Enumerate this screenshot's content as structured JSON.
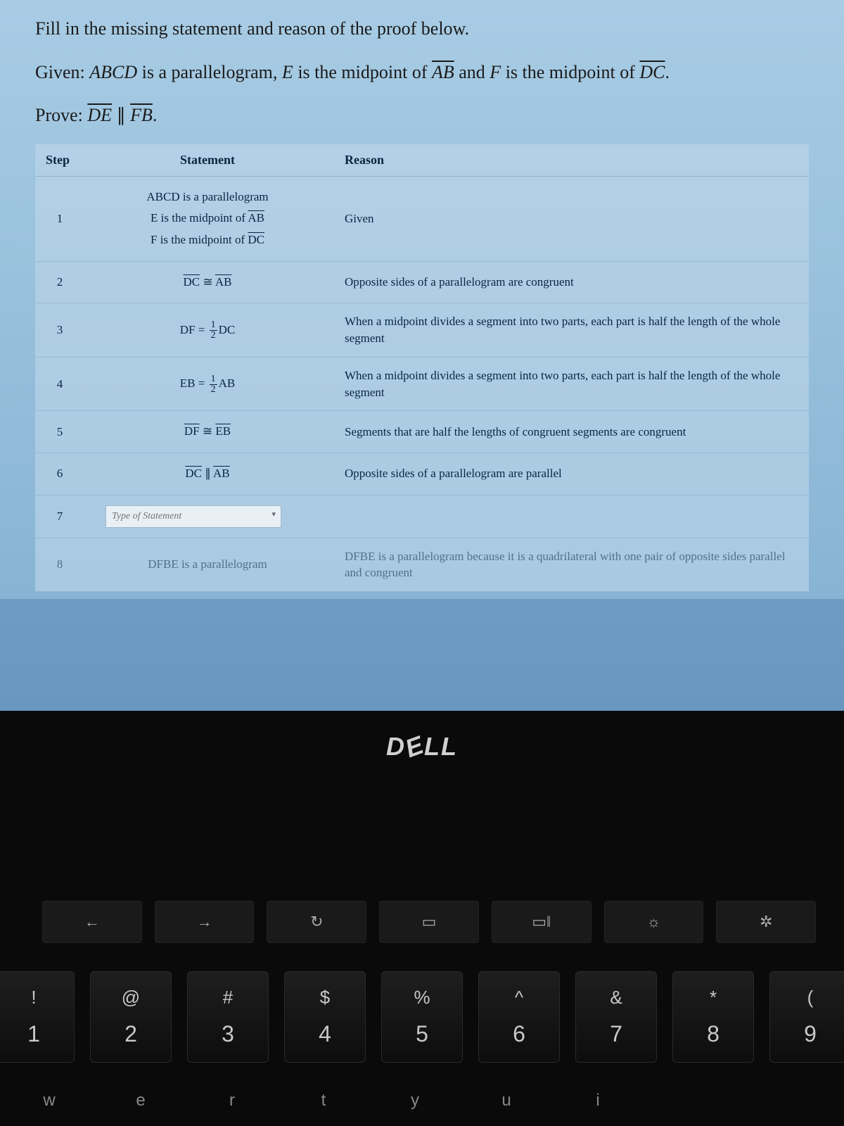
{
  "problem": {
    "instruction": "Fill in the missing statement and reason of the proof below.",
    "given_prefix": "Given: ",
    "given_html": "ABCD is a parallelogram, E is the midpoint of AB and F is the midpoint of DC.",
    "prove_prefix": "Prove: ",
    "prove_html": "DE ∥ FB."
  },
  "table": {
    "headers": {
      "step": "Step",
      "statement": "Statement",
      "reason": "Reason"
    },
    "rows": [
      {
        "step": "1",
        "statement_html": "ABCD is a parallelogram<br>E is the midpoint of <span class='overline'>AB</span><br>F is the midpoint of <span class='overline'>DC</span>",
        "reason": "Given"
      },
      {
        "step": "2",
        "statement_html": "<span class='overline'>DC</span> ≅ <span class='overline'>AB</span>",
        "reason": "Opposite sides of a parallelogram are congruent"
      },
      {
        "step": "3",
        "statement_html": "DF = <span class='frac'><span class='num'>1</span><span class='den'>2</span></span>DC",
        "reason": "When a midpoint divides a segment into two parts, each part is half the length of the whole segment"
      },
      {
        "step": "4",
        "statement_html": "EB = <span class='frac'><span class='num'>1</span><span class='den'>2</span></span>AB",
        "reason": "When a midpoint divides a segment into two parts, each part is half the length of the whole segment"
      },
      {
        "step": "5",
        "statement_html": "<span class='overline'>DF</span> ≅ <span class='overline'>EB</span>",
        "reason": "Segments that are half the lengths of congruent segments are congruent"
      },
      {
        "step": "6",
        "statement_html": "<span class='overline'>DC</span> ∥ <span class='overline'>AB</span>",
        "reason": "Opposite sides of a parallelogram are parallel"
      },
      {
        "step": "7",
        "statement_input_placeholder": "Type of Statement",
        "reason": ""
      },
      {
        "step": "8",
        "statement_html": "DFBE is a parallelogram",
        "reason": "DFBE is a parallelogram because it is a quadrilateral with one pair of opposite sides parallel and congruent",
        "faded": true
      }
    ]
  },
  "hardware": {
    "brand": "DELL",
    "fn_icons": [
      "←",
      "→",
      "↻",
      "▭",
      "▭‖",
      "☼",
      "✲"
    ],
    "num_keys": [
      {
        "sym": "!",
        "num": "1"
      },
      {
        "sym": "@",
        "num": "2"
      },
      {
        "sym": "#",
        "num": "3"
      },
      {
        "sym": "$",
        "num": "4"
      },
      {
        "sym": "%",
        "num": "5"
      },
      {
        "sym": "^",
        "num": "6"
      },
      {
        "sym": "&",
        "num": "7"
      },
      {
        "sym": "*",
        "num": "8"
      },
      {
        "sym": "(",
        "num": "9"
      }
    ],
    "bottom_letters": [
      "w",
      "e",
      "r",
      "t",
      "y",
      "u",
      "i"
    ]
  },
  "colors": {
    "screen_bg_top": "#a8cce4",
    "screen_bg_bottom": "#88b4d4",
    "text": "#0a2540",
    "bezel": "#0a0a0a",
    "key_bg": "#1a1a1a",
    "key_text": "#c8c8c8"
  }
}
